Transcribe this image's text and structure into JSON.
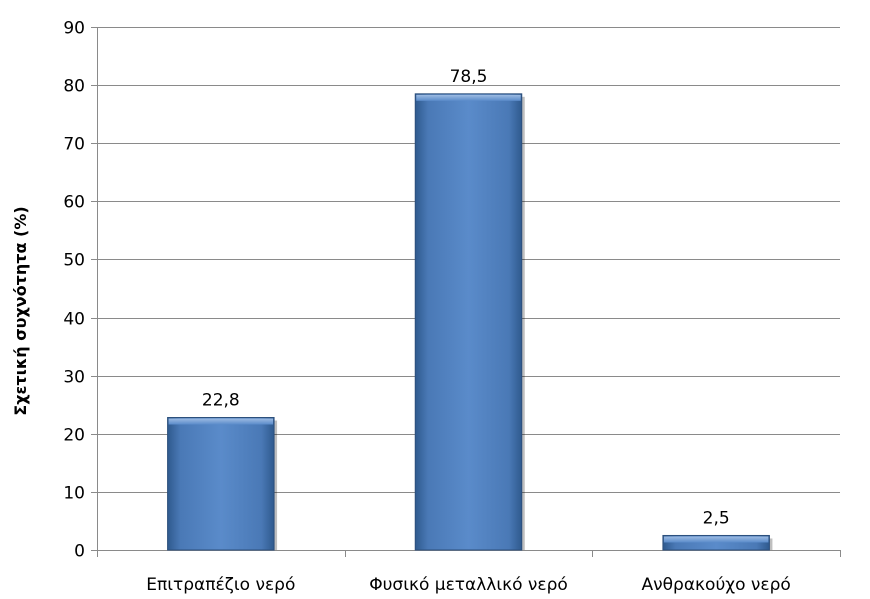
{
  "chart_data": {
    "type": "bar",
    "categories": [
      "Επιτραπέζιο νερό",
      "Φυσικό μεταλλικό νερό",
      "Ανθρακούχο νερό"
    ],
    "values": [
      22.8,
      78.5,
      2.5
    ],
    "data_labels": [
      "22,8",
      "78,5",
      "2,5"
    ],
    "title": "",
    "xlabel": "",
    "ylabel": "Σχετική συχνότητα (%)",
    "ylim": [
      0,
      90
    ],
    "yticks": [
      0,
      10,
      20,
      30,
      40,
      50,
      60,
      70,
      80,
      90
    ],
    "grid": true,
    "legend": "none",
    "bar_color": "#4f81bd"
  }
}
